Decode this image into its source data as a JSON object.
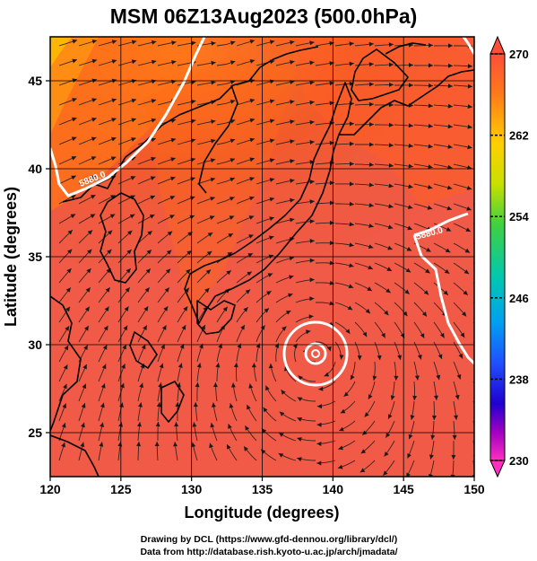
{
  "chart_data": {
    "type": "heatmap",
    "title": "MSM 06Z13Aug2023 (500.0hPa)",
    "xlabel": "Longitude (degrees)",
    "ylabel": "Latitude  (degrees)",
    "xlim": [
      120,
      150
    ],
    "ylim": [
      22.5,
      47.5
    ],
    "x_ticks": [
      "120",
      "125",
      "130",
      "135",
      "140",
      "145",
      "150"
    ],
    "y_ticks": [
      "25",
      "30",
      "35",
      "40",
      "45"
    ],
    "x_tick_values": [
      120,
      125,
      130,
      135,
      140,
      145,
      150
    ],
    "y_tick_values": [
      25,
      30,
      35,
      40,
      45
    ],
    "grid": true,
    "colorbar": {
      "min": 230,
      "max": 270,
      "labels": [
        "270",
        "262",
        "254",
        "246",
        "238",
        "230"
      ],
      "label_values": [
        270,
        262,
        254,
        246,
        238,
        230
      ],
      "placement": "right"
    },
    "contours": [
      {
        "label": "5880.0",
        "value": 5880
      },
      {
        "label": "5880.0",
        "value": 5880
      }
    ],
    "low_center": {
      "lon": 138.8,
      "lat": 30.3
    }
  },
  "credits": [
    "Drawing by DCL (https://www.gfd-dennou.org/library/dcl/)",
    "Data from http://database.rish.kyoto-u.ac.jp/arch/jmadata/"
  ],
  "colors": {
    "field_warm": "#ff5a3c",
    "field_base": "#f05a46",
    "contour": "#ffffff",
    "coast": "#000000"
  }
}
